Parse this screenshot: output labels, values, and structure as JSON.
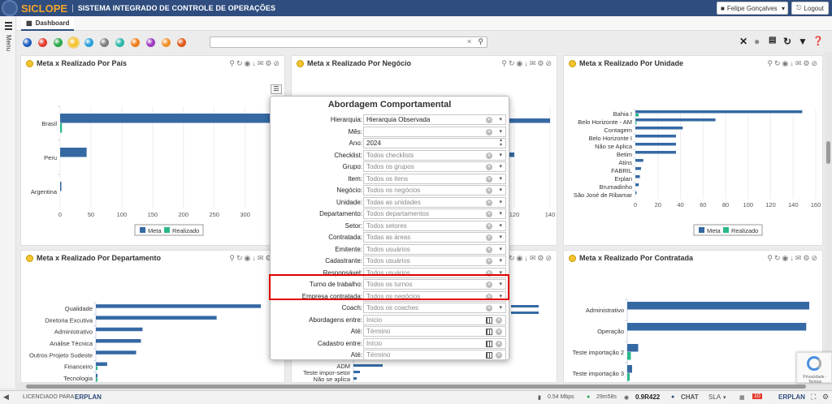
{
  "topbar": {
    "brand": "SICLOPE",
    "system": "SISTEMA INTEGRADO DE CONTROLE DE OPERAÇÕES",
    "user": "Felipe Gonçalves",
    "logout": "Logout"
  },
  "sidemenu": {
    "label": "Menu"
  },
  "tab": {
    "label": "Dashboard"
  },
  "toolbar": {
    "filter_colors": [
      "#1f5fbf",
      "#e23b2e",
      "#2aa84a",
      "#f4c430",
      "#2a9fd8",
      "#7e7e7e",
      "#2ab7a9",
      "#f07d1b",
      "#9b3bbf",
      "#f0922b",
      "#e05a1b"
    ]
  },
  "panels": {
    "pais": {
      "title": "Meta x Realizado Por País"
    },
    "negocio": {
      "title": "Meta x Realizado Por Negócio"
    },
    "unidade": {
      "title": "Meta x Realizado Por Unidade"
    },
    "departamento": {
      "title": "Meta x Realizado Por Departamento"
    },
    "negocio2": {
      "title": ""
    },
    "contratada": {
      "title": "Meta x Realizado Por Contratada"
    }
  },
  "legend": {
    "meta": "Meta",
    "realizado": "Realizado"
  },
  "colors": {
    "meta": "#3569a4",
    "realizado": "#2bb889",
    "highlight": "#e00000"
  },
  "modal": {
    "title": "Abordagem Comportamental",
    "fields": [
      {
        "label": "Hierarquia:",
        "value": "Hierarquia Observada",
        "kind": "select",
        "filled": true
      },
      {
        "label": "Mês:",
        "value": "",
        "kind": "select",
        "filled": true
      },
      {
        "label": "Ano:",
        "value": "2024",
        "kind": "spin",
        "filled": true
      },
      {
        "label": "Checklist:",
        "value": "Todos checklists",
        "kind": "select"
      },
      {
        "label": "Grupo:",
        "value": "Todos os grupos",
        "kind": "select"
      },
      {
        "label": "Item:",
        "value": "Todos os itens",
        "kind": "select"
      },
      {
        "label": "Negócio:",
        "value": "Todos os negócios",
        "kind": "select"
      },
      {
        "label": "Unidade:",
        "value": "Todas as unidades",
        "kind": "select"
      },
      {
        "label": "Departamento:",
        "value": "Todos departamentos",
        "kind": "select"
      },
      {
        "label": "Setor:",
        "value": "Todos setores",
        "kind": "select"
      },
      {
        "label": "Contratada:",
        "value": "Todas as áreas",
        "kind": "select"
      },
      {
        "label": "Emitente:",
        "value": "Todos usuários",
        "kind": "select"
      },
      {
        "label": "Cadastrante:",
        "value": "Todos usuários",
        "kind": "select"
      },
      {
        "label": "Responsável:",
        "value": "Todos usuários",
        "kind": "select"
      },
      {
        "label": "Turno de trabalho:",
        "value": "Todos os turnos",
        "kind": "select"
      },
      {
        "label": "Empresa contratada:",
        "value": "Todos os negócios",
        "kind": "select"
      },
      {
        "label": "Coach:",
        "value": "Todos os coaches",
        "kind": "select"
      },
      {
        "label": "Abordagens entre:",
        "value": "Início",
        "kind": "date"
      },
      {
        "label": "Até:",
        "value": "Término",
        "kind": "date"
      },
      {
        "label": "Cadastro entre:",
        "value": "Início",
        "kind": "date"
      },
      {
        "label": "Até:",
        "value": "Término",
        "kind": "date"
      }
    ]
  },
  "statusbar": {
    "licensed": "LICENCIADO PARA:",
    "erplan": "ERPLAN",
    "speed": "0.54 Mbps",
    "time": "29m58s",
    "version": "0.9R422",
    "chat": "CHAT",
    "sla": "SLA",
    "badge": "10"
  },
  "recaptcha": {
    "text": "Privacidade - Termos"
  },
  "chart_data": [
    {
      "type": "bar",
      "orientation": "horizontal",
      "title": "Meta x Realizado Por País",
      "categories": [
        "Brasil",
        "Peru",
        "Argentina"
      ],
      "series": [
        {
          "name": "Meta",
          "values": [
            360,
            43,
            2
          ]
        },
        {
          "name": "Realizado",
          "values": [
            3,
            0,
            0
          ]
        }
      ],
      "xticks": [
        0,
        50,
        100,
        150,
        200,
        250,
        300
      ],
      "xlim": [
        0,
        340
      ],
      "legend": "bottom"
    },
    {
      "type": "bar",
      "orientation": "horizontal",
      "title": "Meta x Realizado Por Negócio",
      "categories": [
        "ADM",
        "Teste impor-setor",
        "Não se aplica"
      ],
      "series": [
        {
          "name": "Meta",
          "values": [
            140,
            120,
            10
          ]
        }
      ],
      "xticks": [
        120,
        140
      ],
      "xlim": [
        0,
        140
      ]
    },
    {
      "type": "bar",
      "orientation": "horizontal",
      "title": "Meta x Realizado Por Unidade",
      "categories": [
        "Bahia I",
        "Belo Horizonte - AM",
        "Contagem",
        "Belo Horizonte I",
        "Não se Aplica",
        "Betim",
        "Atins",
        "FABRIL",
        "Erplan",
        "Brumadinho",
        "São José de Ribamar"
      ],
      "series": [
        {
          "name": "Meta",
          "values": [
            148,
            71,
            42,
            36,
            36,
            36,
            7,
            5,
            4,
            3,
            1
          ]
        },
        {
          "name": "Realizado",
          "values": [
            3,
            1,
            0,
            0,
            0,
            0,
            0,
            0,
            0,
            0,
            0
          ]
        }
      ],
      "xticks": [
        0,
        20,
        40,
        60,
        80,
        100,
        120,
        140,
        160
      ],
      "xlim": [
        0,
        160
      ],
      "legend": "bottom"
    },
    {
      "type": "bar",
      "orientation": "horizontal",
      "title": "Meta x Realizado Por Departamento",
      "categories": [
        "Qualidade",
        "Diretoria Excutiva",
        "Administrativo",
        "Análise Técnica",
        "Outros Projeto Sudeste",
        "Financeiro",
        "Tecnologia"
      ],
      "series": [
        {
          "name": "Meta",
          "values": [
            205,
            150,
            58,
            56,
            50,
            14,
            2
          ]
        },
        {
          "name": "Realizado",
          "values": [
            0,
            0,
            0,
            0,
            0,
            2,
            2
          ]
        }
      ],
      "xlim": [
        0,
        220
      ]
    },
    {
      "type": "bar",
      "orientation": "horizontal",
      "title": "Meta x Realizado Por Contratada",
      "categories": [
        "Administrativo",
        "Operação",
        "Teste importação 2",
        "Teste importação 3"
      ],
      "series": [
        {
          "name": "Meta",
          "values": [
            300,
            295,
            18,
            8
          ]
        },
        {
          "name": "Realizado",
          "values": [
            0,
            0,
            6,
            4
          ]
        }
      ],
      "xlim": [
        0,
        300
      ]
    }
  ]
}
